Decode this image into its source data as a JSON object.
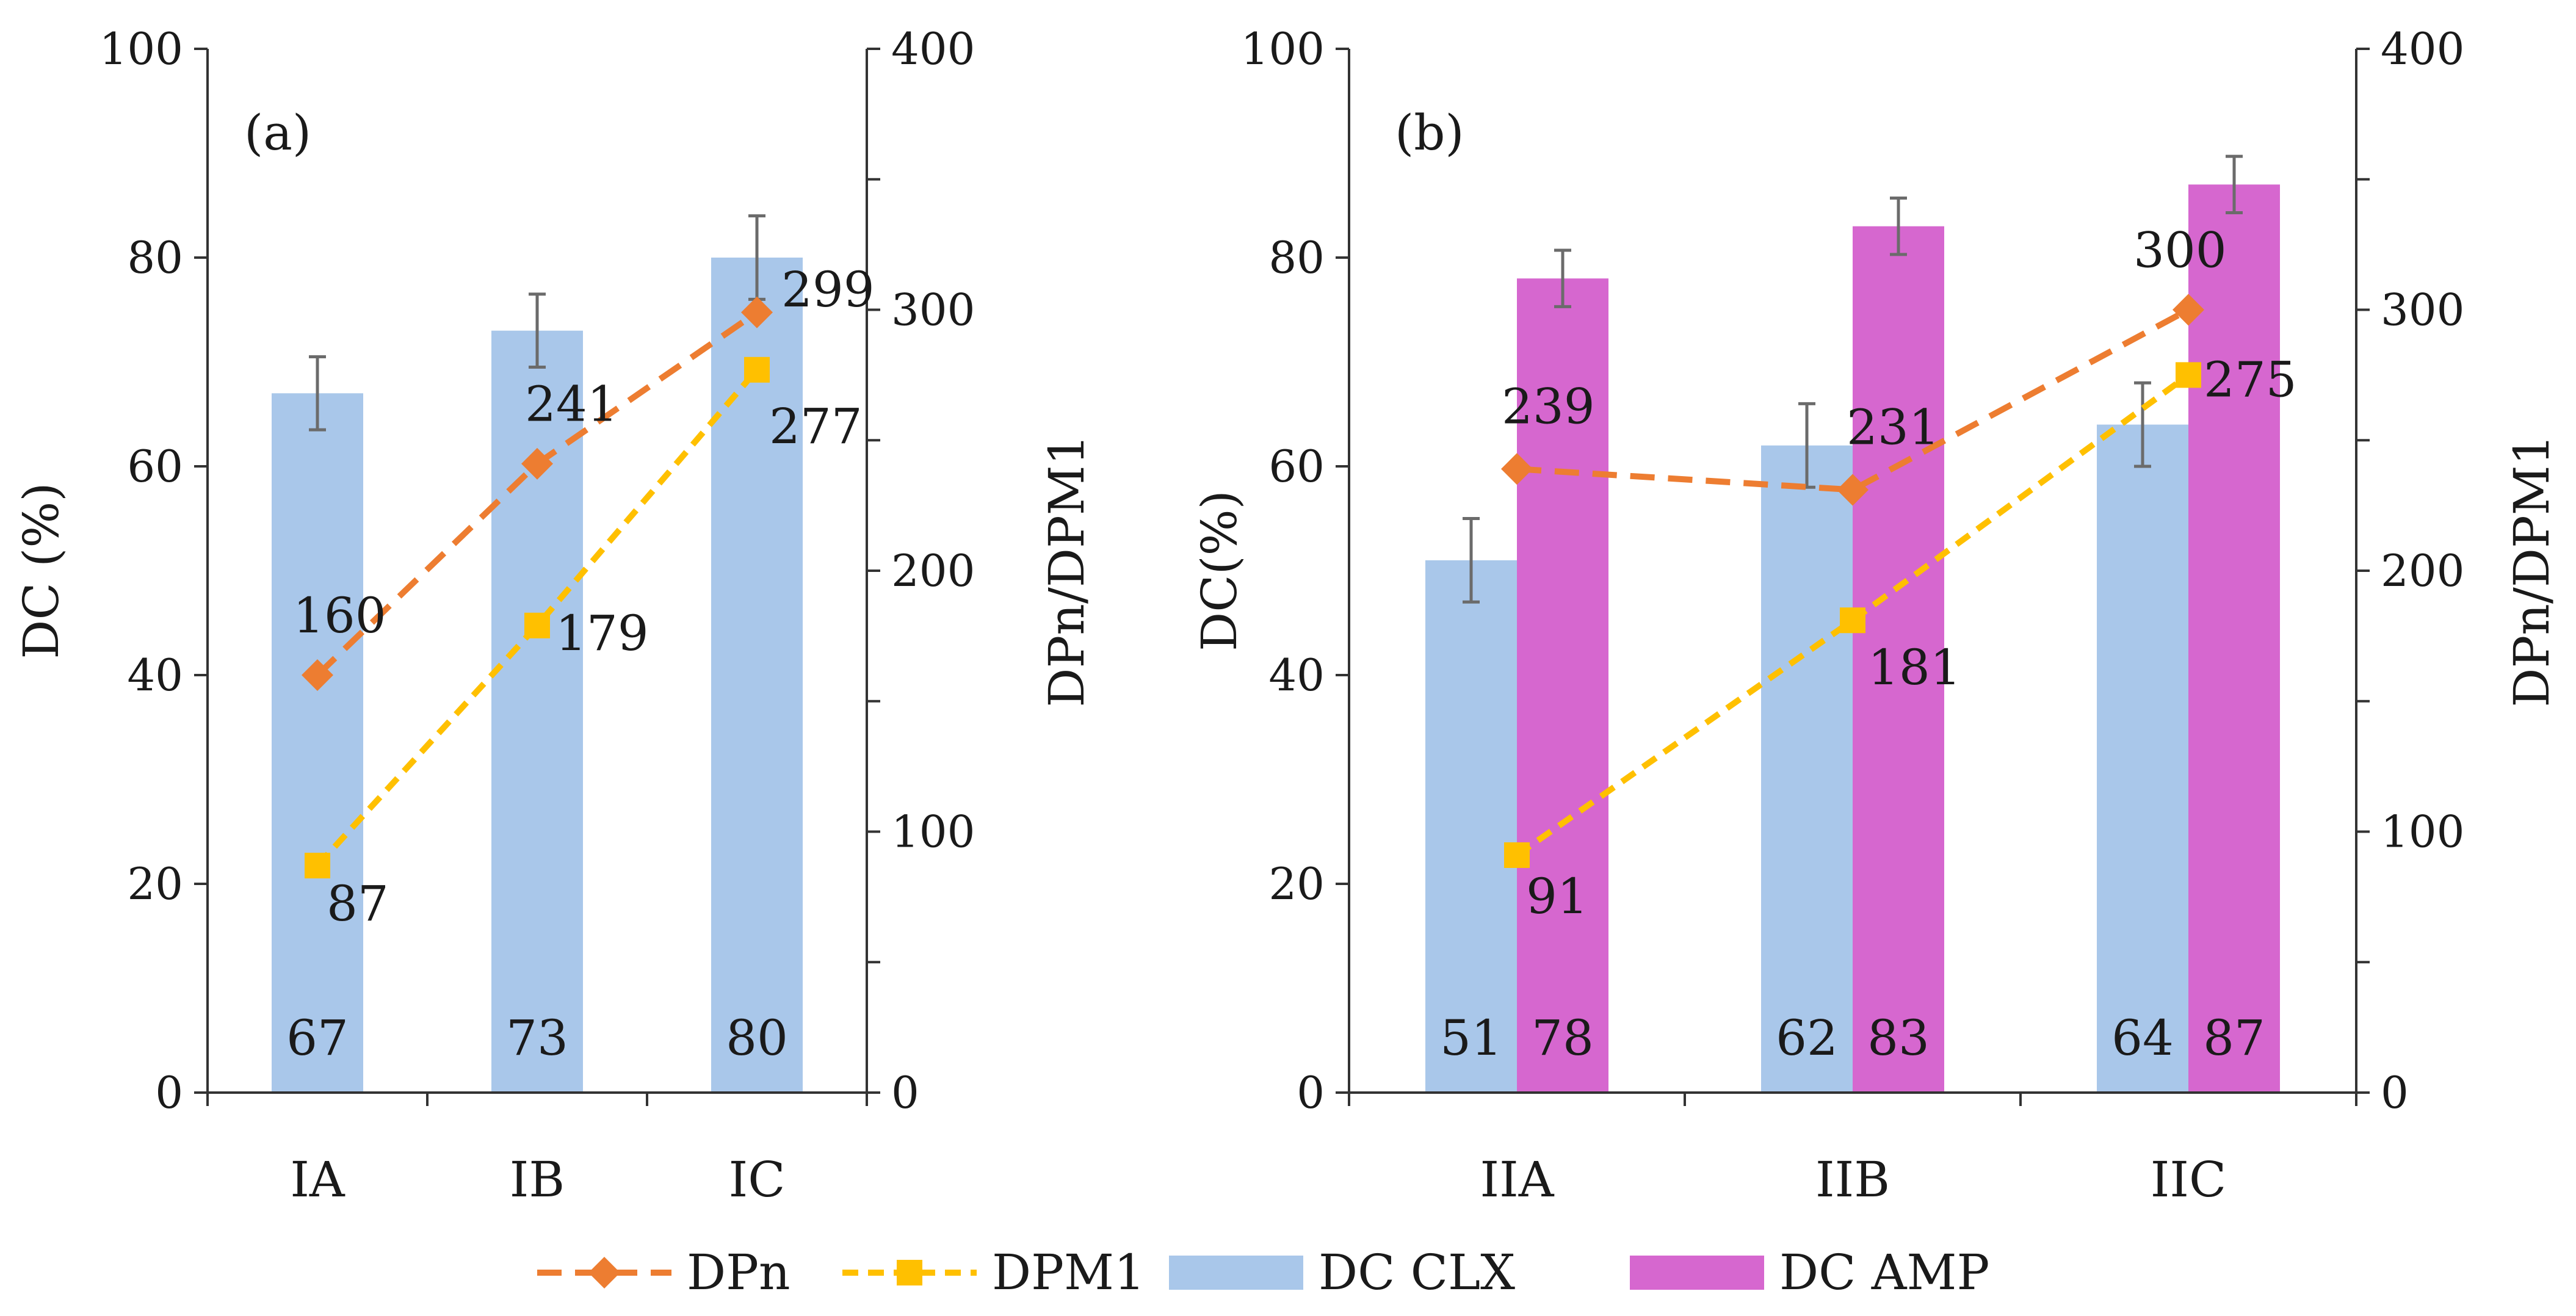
{
  "legend": [
    {
      "label": "DPn",
      "kind": "line",
      "color": "#ED7D31",
      "marker": "diamond"
    },
    {
      "label": "DPM1",
      "kind": "line",
      "color": "#FFC000",
      "marker": "square"
    },
    {
      "label": "DC CLX",
      "kind": "bar",
      "color": "#A9C7EA"
    },
    {
      "label": "DC AMP",
      "kind": "bar",
      "color": "#D667CF"
    }
  ],
  "chart_data": [
    {
      "type": "bar",
      "panel_label": "(a)",
      "categories": [
        "IA",
        "IB",
        "IC"
      ],
      "ylabel": "DC (%)",
      "y2label": "DPn/DPM1",
      "ylim": [
        0,
        100
      ],
      "y2lim": [
        0,
        400
      ],
      "yticks": [
        "0",
        "20",
        "40",
        "60",
        "80",
        "100"
      ],
      "y2ticks": [
        "0",
        "100",
        "200",
        "300",
        "400"
      ],
      "bar_series": [
        {
          "name": "DC CLX",
          "color": "#A9C7EA",
          "values": [
            67,
            73,
            80
          ],
          "errors": [
            3.5,
            3.5,
            4
          ],
          "labels": [
            "67",
            "73",
            "80"
          ]
        }
      ],
      "line_series": [
        {
          "name": "DPn",
          "color": "#ED7D31",
          "marker": "diamond",
          "values": [
            160,
            241,
            299
          ],
          "labels": [
            "160",
            "241",
            "299"
          ]
        },
        {
          "name": "DPM1",
          "color": "#FFC000",
          "marker": "square",
          "values": [
            87,
            179,
            277
          ],
          "labels": [
            "87",
            "179",
            "277"
          ]
        }
      ]
    },
    {
      "type": "bar",
      "panel_label": "(b)",
      "categories": [
        "IIA",
        "IIB",
        "IIC"
      ],
      "ylabel": "DC(%)",
      "y2label": "DPn/DPM1",
      "ylim": [
        0,
        100
      ],
      "y2lim": [
        0,
        400
      ],
      "yticks": [
        "0",
        "20",
        "40",
        "60",
        "80",
        "100"
      ],
      "y2ticks": [
        "0",
        "100",
        "200",
        "300",
        "400"
      ],
      "bar_series": [
        {
          "name": "DC CLX",
          "color": "#A9C7EA",
          "values": [
            51,
            62,
            64
          ],
          "errors": [
            4,
            4,
            4
          ],
          "labels": [
            "51",
            "62",
            "64"
          ]
        },
        {
          "name": "DC AMP",
          "color": "#D667CF",
          "values": [
            78,
            83,
            87
          ],
          "errors": [
            2.7,
            2.7,
            2.7
          ],
          "labels": [
            "78",
            "83",
            "87"
          ]
        }
      ],
      "line_series": [
        {
          "name": "DPn",
          "color": "#ED7D31",
          "marker": "diamond",
          "values": [
            239,
            231,
            300
          ],
          "labels": [
            "239",
            "231",
            "300"
          ]
        },
        {
          "name": "DPM1",
          "color": "#FFC000",
          "marker": "square",
          "values": [
            91,
            181,
            275
          ],
          "labels": [
            "91",
            "181",
            "275"
          ]
        }
      ]
    }
  ]
}
